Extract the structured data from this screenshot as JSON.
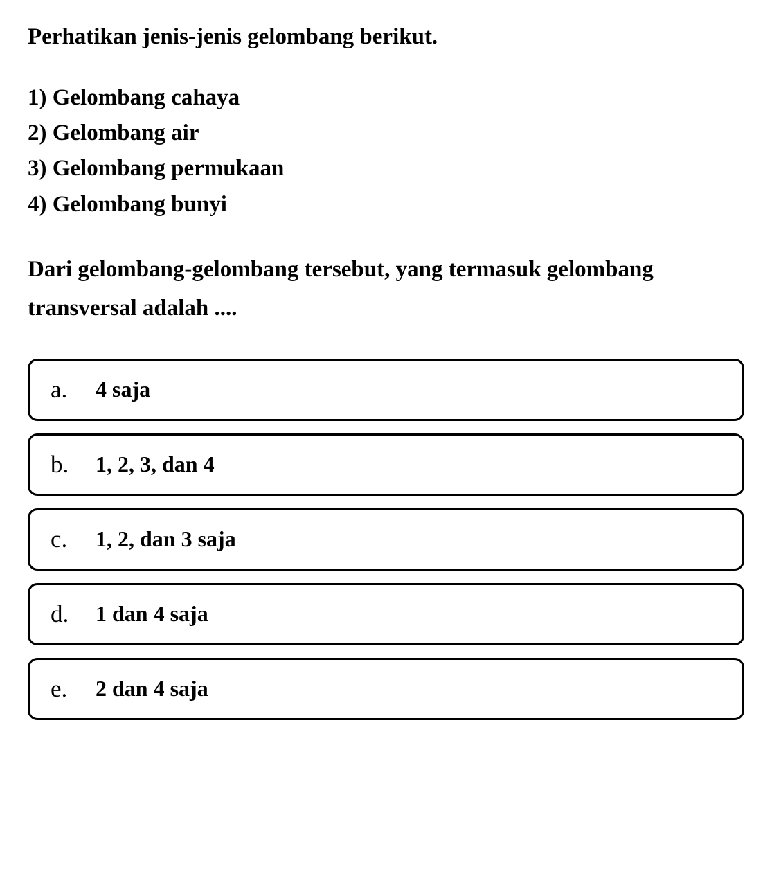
{
  "question": {
    "intro": "Perhatikan jenis-jenis gelombang berikut.",
    "list_items": [
      "1) Gelombang cahaya",
      "2) Gelombang air",
      "3) Gelombang permukaan",
      "4) Gelombang bunyi"
    ],
    "prompt": "Dari gelombang-gelombang tersebut, yang termasuk gelombang transversal adalah ...."
  },
  "options": [
    {
      "letter": "a.",
      "text": "4 saja"
    },
    {
      "letter": "b.",
      "text": "1, 2, 3, dan 4"
    },
    {
      "letter": "c.",
      "text": "1, 2, dan 3 saja"
    },
    {
      "letter": "d.",
      "text": "1 dan 4 saja"
    },
    {
      "letter": "e.",
      "text": "2 dan 4 saja"
    }
  ],
  "styles": {
    "background_color": "#ffffff",
    "text_color": "#000000",
    "border_color": "#000000",
    "border_width": 3,
    "border_radius": 14,
    "intro_fontsize": 33,
    "list_fontsize": 33,
    "prompt_fontsize": 33,
    "option_letter_fontsize": 35,
    "option_text_fontsize": 32,
    "font_family": "Georgia, Times New Roman, serif"
  }
}
